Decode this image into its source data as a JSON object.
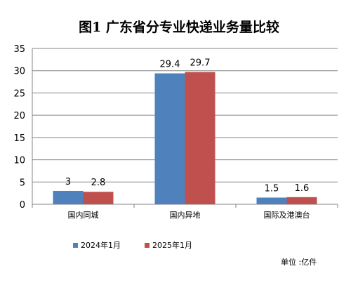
{
  "chart_data": {
    "type": "bar",
    "title": "图1 广东省分专业快递业务量比较",
    "categories": [
      "国内同城",
      "国内异地",
      "国际及港澳台"
    ],
    "series": [
      {
        "name": "2024年1月",
        "color": "#4f81bd",
        "values": [
          3,
          29.4,
          1.5
        ],
        "labels": [
          "3",
          "29.4",
          "1.5"
        ]
      },
      {
        "name": "2025年1月",
        "color": "#c0504d",
        "values": [
          2.8,
          29.7,
          1.6
        ],
        "labels": [
          "2.8",
          "29.7",
          "1.6"
        ]
      }
    ],
    "ylim": [
      0,
      35
    ],
    "yticks": [
      0,
      5,
      10,
      15,
      20,
      25,
      30,
      35
    ],
    "grid": true,
    "legend_position": "bottom",
    "unit_note": "单位 :亿件"
  }
}
